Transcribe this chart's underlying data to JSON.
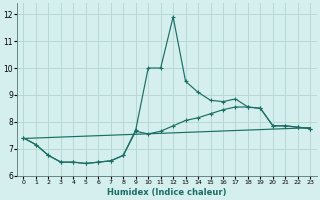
{
  "title": "",
  "xlabel": "Humidex (Indice chaleur)",
  "xlim": [
    -0.5,
    23.5
  ],
  "ylim": [
    6,
    12.4
  ],
  "yticks": [
    6,
    7,
    8,
    9,
    10,
    11,
    12
  ],
  "xticks": [
    0,
    1,
    2,
    3,
    4,
    5,
    6,
    7,
    8,
    9,
    10,
    11,
    12,
    13,
    14,
    15,
    16,
    17,
    18,
    19,
    20,
    21,
    22,
    23
  ],
  "background_color": "#d4efee",
  "grid_color": "#b8d8d5",
  "line_color": "#1a6e64",
  "line_main_x": [
    0,
    1,
    2,
    3,
    4,
    5,
    6,
    7,
    8,
    9,
    10,
    11,
    12,
    13,
    14,
    15,
    16,
    17,
    18,
    19,
    20,
    21,
    22,
    23
  ],
  "line_main_y": [
    7.4,
    7.15,
    6.75,
    6.5,
    6.5,
    6.45,
    6.5,
    6.55,
    6.75,
    7.7,
    10.0,
    10.0,
    11.9,
    9.5,
    9.1,
    8.8,
    8.75,
    8.85,
    8.55,
    8.5,
    7.85,
    7.85,
    7.8,
    7.75
  ],
  "line_low_x": [
    0,
    1,
    2,
    3,
    4,
    5,
    6,
    7,
    8,
    9,
    10,
    11,
    12,
    13,
    14,
    15,
    16,
    17,
    18,
    19,
    20,
    21,
    22,
    23
  ],
  "line_low_y": [
    7.4,
    7.15,
    6.75,
    6.5,
    6.5,
    6.45,
    6.5,
    6.55,
    6.75,
    7.65,
    7.55,
    7.65,
    7.85,
    8.05,
    8.15,
    8.3,
    8.45,
    8.55,
    8.55,
    8.5,
    7.85,
    7.85,
    7.8,
    7.75
  ],
  "line_trend_x": [
    0,
    23
  ],
  "line_trend_y": [
    7.38,
    7.78
  ]
}
